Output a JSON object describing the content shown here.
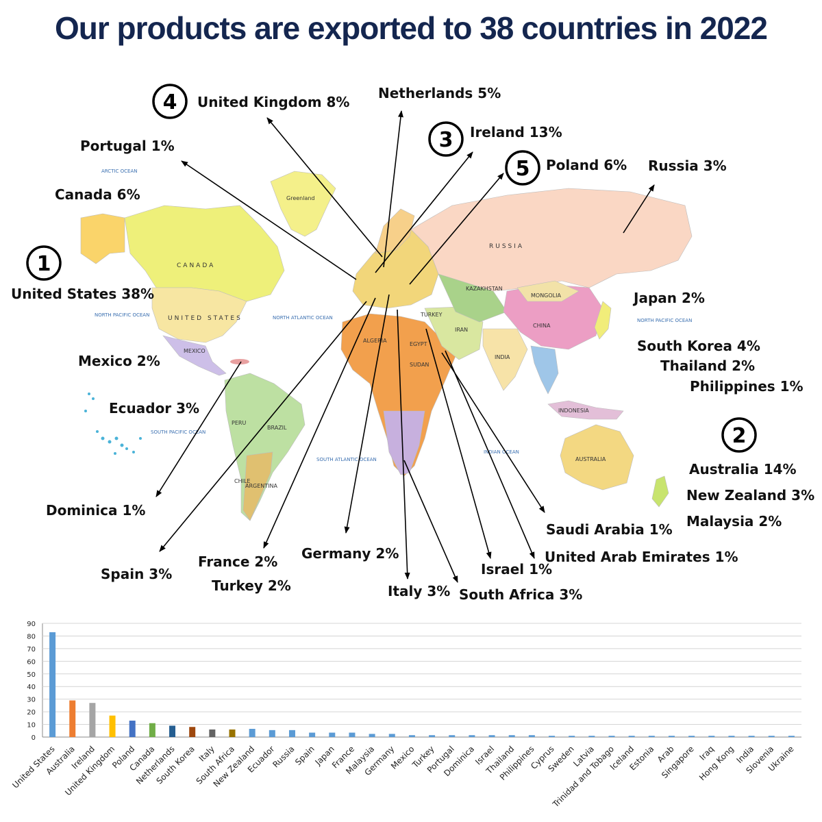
{
  "title": "Our products are exported to 38 countries in 2022",
  "map": {
    "oceans": [
      "ARCTIC OCEAN",
      "NORTH PACIFIC OCEAN",
      "NORTH ATLANTIC OCEAN",
      "SOUTH PACIFIC OCEAN",
      "SOUTH ATLANTIC OCEAN",
      "INDIAN OCEAN",
      "NORTH PACIFIC OCEAN"
    ],
    "countries": [
      "CANADA",
      "UNITED STATES",
      "RUSSIA",
      "CHINA",
      "BRAZIL",
      "AUSTRALIA",
      "Greenland",
      "INDIA",
      "ARGENTINA",
      "MEXICO",
      "ALGERIA",
      "KAZAKHSTAN",
      "MONGOLIA",
      "INDONESIA",
      "SUDAN",
      "PERU",
      "IRAN",
      "TURKEY",
      "EGYPT",
      "CHILE"
    ],
    "ranks": [
      "1",
      "2",
      "3",
      "4",
      "5"
    ],
    "labels": {
      "united_states": "United States 38%",
      "australia": "Australia 14%",
      "ireland": "Ireland 13%",
      "united_kingdom": "United Kingdom 8%",
      "poland": "Poland 6%",
      "netherlands": "Netherlands 5%",
      "portugal": "Portugal 1%",
      "canada": "Canada 6%",
      "russia": "Russia 3%",
      "japan": "Japan 2%",
      "south_korea": "South Korea 4%",
      "thailand": "Thailand 2%",
      "philippines": "Philippines 1%",
      "new_zealand": "New Zealand 3%",
      "malaysia": "Malaysia 2%",
      "mexico": "Mexico 2%",
      "ecuador": "Ecuador 3%",
      "dominica": "Dominica 1%",
      "spain": "Spain 3%",
      "france": "France 2%",
      "turkey": "Turkey 2%",
      "germany": "Germany 2%",
      "italy": "Italy 3%",
      "south_africa": "South Africa 3%",
      "israel": "Israel 1%",
      "saudi_arabia": "Saudi Arabia 1%",
      "uae": "United Arab Emirates 1%"
    }
  },
  "chart_data": {
    "type": "bar",
    "categories": [
      "United States",
      "Australia",
      "Ireland",
      "United Kingdom",
      "Poland",
      "Canada",
      "Netherlands",
      "South Korea",
      "Italy",
      "South Africa",
      "New Zealand",
      "Ecuador",
      "Russia",
      "Spain",
      "Japan",
      "France",
      "Malaysia",
      "Germany",
      "Mexico",
      "Turkey",
      "Portugal",
      "Dominica",
      "Israel",
      "Thailand",
      "Philippines",
      "Cyprus",
      "Sweden",
      "Latvia",
      "Trinidad and Tobago",
      "Iceland",
      "Estonia",
      "Arab",
      "Singapore",
      "Iraq",
      "Hong Kong",
      "India",
      "Slovenia",
      "Ukraine"
    ],
    "values": [
      83,
      29,
      27,
      17,
      13,
      11,
      9,
      8,
      6,
      6,
      6.5,
      5.5,
      5.5,
      3.5,
      3.5,
      3.5,
      2.5,
      2.5,
      1.5,
      1.5,
      1.5,
      1.5,
      1.5,
      1.5,
      1.5,
      1,
      1,
      1,
      1,
      1,
      1,
      1,
      1,
      1,
      1,
      1,
      1,
      1
    ],
    "colors": [
      "#5b9bd5",
      "#ed7d31",
      "#a5a5a5",
      "#ffc000",
      "#4472c4",
      "#70ad47",
      "#255e91",
      "#9e480e",
      "#636363",
      "#997300",
      "#5b9bd5",
      "#5b9bd5",
      "#5b9bd5",
      "#5b9bd5",
      "#5b9bd5",
      "#5b9bd5",
      "#5b9bd5",
      "#5b9bd5",
      "#5b9bd5",
      "#5b9bd5",
      "#5b9bd5",
      "#5b9bd5",
      "#5b9bd5",
      "#5b9bd5",
      "#5b9bd5",
      "#5b9bd5",
      "#5b9bd5",
      "#5b9bd5",
      "#5b9bd5",
      "#5b9bd5",
      "#5b9bd5",
      "#5b9bd5",
      "#5b9bd5",
      "#5b9bd5",
      "#5b9bd5",
      "#5b9bd5",
      "#5b9bd5",
      "#5b9bd5"
    ],
    "yticks": [
      0,
      10,
      20,
      30,
      40,
      50,
      60,
      70,
      80,
      90
    ],
    "ylim": [
      0,
      90
    ],
    "grid": true,
    "title": "",
    "xlabel": "",
    "ylabel": ""
  }
}
